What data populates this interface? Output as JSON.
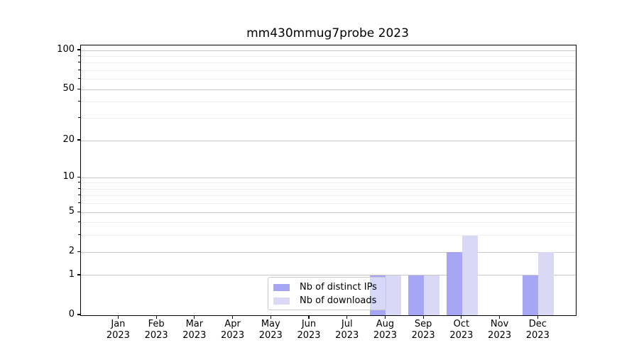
{
  "chart_data": {
    "type": "bar",
    "title": "mm430mmug7probe 2023",
    "x_month_labels": [
      "Jan",
      "Feb",
      "Mar",
      "Apr",
      "May",
      "Jun",
      "Jul",
      "Aug",
      "Sep",
      "Oct",
      "Nov",
      "Dec"
    ],
    "x_year_label": "2023",
    "series": [
      {
        "name": "Nb of distinct IPs",
        "color": "#a6a6f4",
        "values": [
          0,
          0,
          0,
          0,
          0,
          0,
          0,
          1,
          1,
          2,
          0,
          1
        ]
      },
      {
        "name": "Nb of downloads",
        "color": "#d9d9f6",
        "values": [
          0,
          0,
          0,
          0,
          0,
          0,
          0,
          1,
          1,
          3,
          0,
          2
        ]
      }
    ],
    "y_scale": "log1p",
    "y_major_ticks": [
      0,
      1,
      2,
      5,
      10,
      20,
      50,
      100
    ],
    "y_minor_ticks": [
      3,
      4,
      6,
      7,
      8,
      9,
      30,
      40,
      60,
      70,
      80,
      90
    ],
    "ylim": [
      0,
      110
    ],
    "grid": true,
    "legend_position": "inside lower-center-left"
  }
}
